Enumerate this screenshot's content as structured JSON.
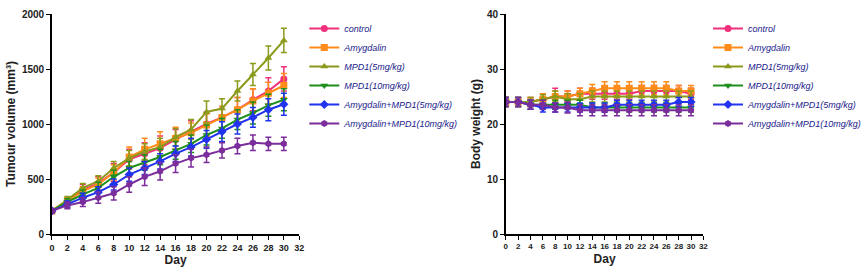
{
  "chart_data": [
    {
      "type": "line",
      "x_label": "Day",
      "y_label": "Tumour volume (mm³)",
      "x": [
        0,
        2,
        4,
        6,
        8,
        10,
        12,
        14,
        16,
        18,
        20,
        22,
        24,
        26,
        28,
        30
      ],
      "xlim": [
        0,
        32
      ],
      "xticks": [
        0,
        2,
        4,
        6,
        8,
        10,
        12,
        14,
        16,
        18,
        20,
        22,
        24,
        26,
        28,
        30,
        32
      ],
      "ylim": [
        0,
        2000
      ],
      "yticks": [
        0,
        500,
        1000,
        1500,
        2000
      ],
      "grid": false,
      "legend": "right",
      "series": [
        {
          "name": "control",
          "color": "#f0307a",
          "marker": "circle",
          "values": [
            210,
            300,
            400,
            460,
            560,
            680,
            730,
            780,
            860,
            930,
            1000,
            1060,
            1130,
            1220,
            1300,
            1410
          ],
          "error": [
            20,
            30,
            50,
            60,
            80,
            90,
            100,
            110,
            90,
            100,
            110,
            100,
            110,
            100,
            120,
            110
          ]
        },
        {
          "name": "Amygdalin",
          "color": "#ff8c1a",
          "marker": "square",
          "values": [
            210,
            300,
            390,
            450,
            560,
            700,
            770,
            820,
            870,
            920,
            990,
            1060,
            1130,
            1210,
            1280,
            1350
          ],
          "error": [
            20,
            30,
            40,
            60,
            70,
            90,
            100,
            110,
            100,
            90,
            100,
            100,
            110,
            110,
            100,
            110
          ]
        },
        {
          "name": "MPD1(5mg/kg)",
          "color": "#8c9a1c",
          "marker": "triangle-up",
          "values": [
            210,
            310,
            420,
            480,
            600,
            690,
            750,
            790,
            880,
            950,
            1110,
            1140,
            1300,
            1450,
            1600,
            1760
          ],
          "error": [
            20,
            30,
            40,
            50,
            60,
            70,
            70,
            80,
            80,
            90,
            100,
            90,
            90,
            100,
            110,
            110
          ]
        },
        {
          "name": "MPD1(10mg/kg)",
          "color": "#1f8f1f",
          "marker": "triangle-down",
          "values": [
            210,
            290,
            360,
            420,
            520,
            600,
            650,
            700,
            760,
            820,
            900,
            960,
            1040,
            1100,
            1170,
            1220
          ],
          "error": [
            20,
            30,
            40,
            50,
            60,
            60,
            70,
            70,
            80,
            80,
            90,
            90,
            90,
            100,
            100,
            100
          ]
        },
        {
          "name": "Amygdalin+MPD1(5mg/kg)",
          "color": "#2233ee",
          "marker": "diamond",
          "values": [
            210,
            270,
            330,
            380,
            450,
            540,
            600,
            660,
            730,
            790,
            860,
            930,
            1000,
            1060,
            1130,
            1180
          ],
          "error": [
            20,
            30,
            40,
            50,
            50,
            60,
            60,
            70,
            70,
            80,
            80,
            90,
            90,
            90,
            100,
            100
          ]
        },
        {
          "name": "Amygdalin+MPD1(10mg/kg)",
          "color": "#7b2d9b",
          "marker": "hexagon",
          "values": [
            210,
            260,
            290,
            330,
            370,
            450,
            520,
            570,
            640,
            690,
            720,
            760,
            800,
            830,
            820,
            820
          ],
          "error": [
            20,
            30,
            40,
            50,
            60,
            70,
            80,
            80,
            80,
            80,
            70,
            70,
            70,
            70,
            60,
            60
          ]
        }
      ]
    },
    {
      "type": "line",
      "x_label": "Day",
      "y_label": "Body weight (g)",
      "x": [
        0,
        2,
        4,
        6,
        8,
        10,
        12,
        14,
        16,
        18,
        20,
        22,
        24,
        26,
        28,
        30
      ],
      "xlim": [
        0,
        32
      ],
      "xticks": [
        0,
        2,
        4,
        6,
        8,
        10,
        12,
        14,
        16,
        18,
        20,
        22,
        24,
        26,
        28,
        30,
        32
      ],
      "ylim": [
        0,
        40
      ],
      "yticks": [
        0,
        10,
        20,
        30,
        40
      ],
      "grid": false,
      "legend": "right",
      "series": [
        {
          "name": "control",
          "color": "#f0307a",
          "marker": "circle",
          "values": [
            24,
            24,
            24,
            24.5,
            25,
            25,
            25.5,
            25.5,
            25.5,
            25.5,
            25.5,
            26,
            26,
            26,
            26,
            25.5
          ],
          "error": [
            0.8,
            0.8,
            0.8,
            1,
            1.5,
            1,
            1,
            1,
            1,
            1,
            1,
            1,
            1,
            1,
            1,
            1
          ]
        },
        {
          "name": "Amygdalin",
          "color": "#ff8c1a",
          "marker": "square",
          "values": [
            24,
            24,
            24,
            24.5,
            25,
            25,
            25.5,
            26,
            26.5,
            26.5,
            26.5,
            26.5,
            26.5,
            26.5,
            26,
            26
          ],
          "error": [
            0.8,
            0.8,
            0.8,
            1,
            1,
            1,
            1,
            1.2,
            1.2,
            1.2,
            1.2,
            1.2,
            1.2,
            1.2,
            1,
            1
          ]
        },
        {
          "name": "MPD1(5mg/kg)",
          "color": "#8c9a1c",
          "marker": "triangle-up",
          "values": [
            24,
            24,
            24,
            24.5,
            25,
            24.5,
            24.5,
            25,
            25,
            25,
            25,
            25,
            25,
            25,
            25,
            25
          ],
          "error": [
            0.8,
            0.8,
            0.8,
            0.8,
            1,
            1,
            1,
            1,
            1,
            1,
            1,
            1,
            1,
            1,
            1,
            1
          ]
        },
        {
          "name": "MPD1(10mg/kg)",
          "color": "#1f8f1f",
          "marker": "triangle-down",
          "values": [
            24,
            24,
            23.5,
            23.5,
            23.5,
            23.5,
            23.5,
            23,
            23,
            23,
            23,
            23,
            23,
            23,
            23,
            23
          ],
          "error": [
            0.8,
            0.8,
            0.8,
            0.8,
            0.8,
            0.8,
            0.8,
            0.8,
            0.8,
            0.8,
            0.8,
            0.8,
            0.8,
            0.8,
            0.8,
            0.8
          ]
        },
        {
          "name": "Amygdalin+MPD1(5mg/kg)",
          "color": "#2233ee",
          "marker": "diamond",
          "values": [
            24,
            24,
            23.5,
            23,
            23,
            23,
            23,
            23,
            23,
            23.5,
            23.5,
            23.5,
            23.5,
            23.5,
            24,
            24
          ],
          "error": [
            0.8,
            0.8,
            0.8,
            0.8,
            0.8,
            0.8,
            0.8,
            0.8,
            0.8,
            0.8,
            0.8,
            0.8,
            0.8,
            0.8,
            0.8,
            0.8
          ]
        },
        {
          "name": "Amygdalin+MPD1(10mg/kg)",
          "color": "#7b2d9b",
          "marker": "hexagon",
          "values": [
            24,
            24,
            23.5,
            23.5,
            23,
            23,
            22.5,
            22.5,
            22.5,
            22.5,
            22.5,
            22.5,
            22.5,
            22.5,
            22.5,
            22.5
          ],
          "error": [
            0.8,
            0.8,
            0.8,
            0.8,
            0.8,
            1,
            1,
            1,
            1,
            1,
            1,
            1,
            1,
            1,
            1,
            1
          ]
        }
      ]
    }
  ]
}
